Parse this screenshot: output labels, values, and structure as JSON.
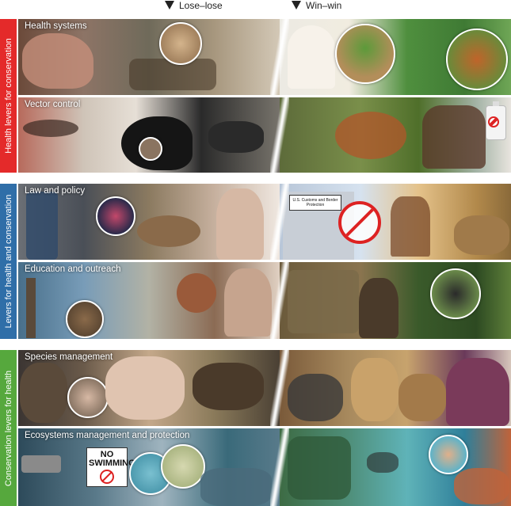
{
  "header": {
    "lose_label": "Lose–lose",
    "win_label": "Win–win"
  },
  "sections": {
    "health_levers": "Health levers for conservation",
    "both_levers": "Levers for health and conservation",
    "conservation_levers": "Conservation levers for health"
  },
  "panels": [
    {
      "label": "Health systems"
    },
    {
      "label": "Vector control"
    },
    {
      "label": "Law and policy"
    },
    {
      "label": "Education and outreach"
    },
    {
      "label": "Species management"
    },
    {
      "label": "Ecosystems management and protection"
    }
  ],
  "signs": {
    "no_swimming": "NO SWIMMING",
    "customs": "U.S. Customs and Border Protection"
  },
  "colors": {
    "health_red": "#e42a2a",
    "both_blue": "#2f6ea8",
    "conservation_green": "#56a83d"
  }
}
